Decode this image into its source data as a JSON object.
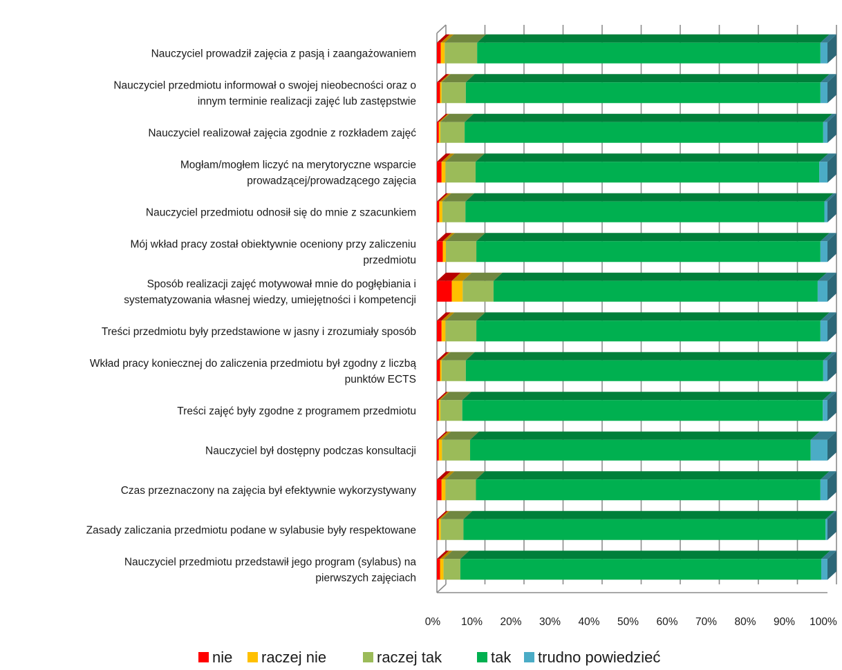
{
  "chart_data": {
    "type": "bar",
    "orientation": "horizontal",
    "stacked": "percent",
    "three_d": true,
    "categories": [
      [
        "Nauczyciel prowadził zajęcia z pasją i zaangażowaniem"
      ],
      [
        "Nauczyciel przedmiotu informował o swojej nieobecności oraz o",
        "innym terminie realizacji zajęć lub zastępstwie"
      ],
      [
        "Nauczyciel realizował zajęcia zgodnie z rozkładem zajęć"
      ],
      [
        "Mogłam/mogłem liczyć na merytoryczne wsparcie",
        "prowadzącej/prowadzącego zajęcia"
      ],
      [
        "Nauczyciel przedmiotu odnosił się do mnie z szacunkiem"
      ],
      [
        "Mój wkład pracy został obiektywnie oceniony przy zaliczeniu",
        "przedmiotu"
      ],
      [
        "Sposób realizacji zajęć motywował mnie do pogłębiania i",
        "systematyzowania własnej wiedzy, umiejętności i kompetencji"
      ],
      [
        "Treści przedmiotu były przedstawione w jasny i zrozumiały sposób"
      ],
      [
        "Wkład pracy koniecznej do zaliczenia przedmiotu był zgodny z liczbą",
        "punktów ECTS"
      ],
      [
        "Treści zajęć były zgodne z programem przedmiotu"
      ],
      [
        "Nauczyciel był dostępny podczas konsultacji"
      ],
      [
        "Czas przeznaczony na zajęcia był efektywnie wykorzystywany"
      ],
      [
        "Zasady zaliczania przedmiotu podane w sylabusie były respektowane"
      ],
      [
        "Nauczyciel przedmiotu przedstawił jego program (sylabus) na",
        "pierwszych zajęciach"
      ]
    ],
    "series": [
      {
        "name": "nie",
        "color": "#ff0000",
        "values": [
          1.0,
          0.8,
          0.5,
          1.2,
          0.6,
          1.5,
          3.8,
          1.2,
          0.8,
          0.5,
          0.5,
          1.2,
          0.5,
          0.8
        ]
      },
      {
        "name": "raczej nie",
        "color": "#ffc000",
        "values": [
          1.0,
          0.4,
          0.4,
          1.0,
          0.8,
          0.8,
          2.8,
          1.0,
          0.4,
          0.4,
          0.8,
          1.0,
          0.5,
          0.9
        ]
      },
      {
        "name": "raczej tak",
        "color": "#9bbb59",
        "values": [
          8.3,
          6.2,
          6.2,
          7.7,
          5.9,
          7.8,
          7.9,
          7.9,
          6.2,
          5.6,
          7.2,
          7.8,
          5.8,
          4.3
        ]
      },
      {
        "name": "tak",
        "color": "#00b050",
        "values": [
          87.9,
          90.8,
          91.8,
          88.0,
          91.9,
          88.1,
          83.0,
          88.1,
          91.5,
          92.3,
          87.2,
          88.2,
          92.7,
          92.4
        ]
      },
      {
        "name": "trudno powiedzieć",
        "color": "#4bacc6",
        "values": [
          1.8,
          1.8,
          1.1,
          2.1,
          0.8,
          1.8,
          2.5,
          1.8,
          1.1,
          1.2,
          4.3,
          1.8,
          0.5,
          1.6
        ]
      }
    ],
    "xlim": [
      0,
      100
    ],
    "xticks": [
      "0%",
      "10%",
      "20%",
      "30%",
      "40%",
      "50%",
      "60%",
      "70%",
      "80%",
      "90%",
      "100%"
    ],
    "grid": true,
    "legend_position": "bottom"
  }
}
